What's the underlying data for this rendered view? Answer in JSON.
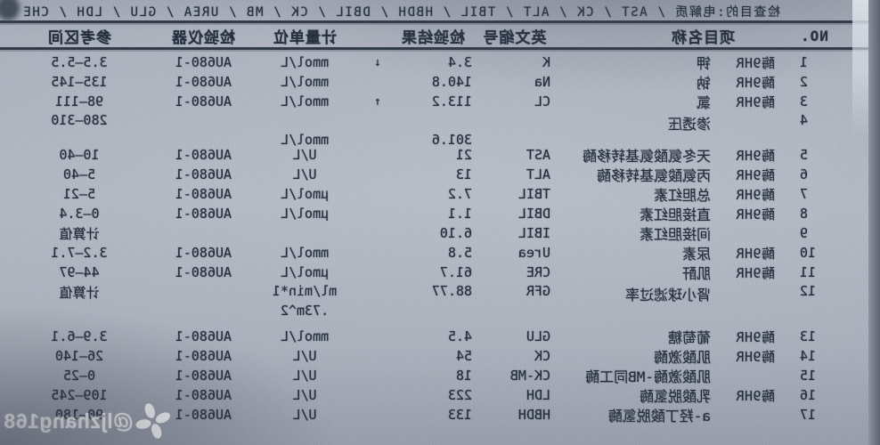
{
  "photo": {
    "orientation": "mirrored-horizontally"
  },
  "header_line": "检查目的:电解质 / AST / CK / ALT / TBIL / HBDH / DBIL / CK / MB / UREA / GLU / LDH / CHE",
  "table": {
    "columns": [
      "NO.",
      "项目名称",
      "英文缩号",
      "检验结果",
      "计量单位",
      "检验仪器",
      "参考区间"
    ],
    "rows": [
      {
        "no": "1",
        "prefix": "酶9HR",
        "name": "钾",
        "abbr": "K",
        "result": "3.4",
        "flag": "↓",
        "unit": "mmol/L",
        "instr": "AU680-1",
        "ref": "3.5—5.5"
      },
      {
        "no": "2",
        "prefix": "酶9HR",
        "name": "钠",
        "abbr": "Na",
        "result": "140.8",
        "flag": "",
        "unit": "mmol/L",
        "instr": "AU680-1",
        "ref": "135—145"
      },
      {
        "no": "3",
        "prefix": "酶9HR",
        "name": "氯",
        "abbr": "CL",
        "result": "113.2",
        "flag": "↑",
        "unit": "mmol/L",
        "instr": "AU680-1",
        "ref": "98—111"
      },
      {
        "no": "4",
        "prefix": "",
        "name": "渗透压",
        "abbr": "",
        "result": "",
        "flag": "",
        "unit": "",
        "instr": "",
        "ref": "280—310",
        "sub": {
          "result": "301.6",
          "unit": "mmol/L"
        }
      },
      {
        "no": "5",
        "prefix": "酶9HR",
        "name": "天冬氨酸氨基转移酶",
        "abbr": "AST",
        "result": "21",
        "flag": "",
        "unit": "U/L",
        "instr": "AU680-1",
        "ref": "10—40"
      },
      {
        "no": "6",
        "prefix": "酶9HR",
        "name": "丙氨酸氨基转移酶",
        "abbr": "ALT",
        "result": "13",
        "flag": "",
        "unit": "U/L",
        "instr": "AU680-1",
        "ref": "5—40"
      },
      {
        "no": "7",
        "prefix": "酶9HR",
        "name": "总胆红素",
        "abbr": "TBIL",
        "result": "7.2",
        "flag": "",
        "unit": "μmol/L",
        "instr": "AU680-1",
        "ref": "5—21"
      },
      {
        "no": "8",
        "prefix": "酶9HR",
        "name": "直接胆红素",
        "abbr": "DBIL",
        "result": "1.1",
        "flag": "",
        "unit": "μmol/L",
        "instr": "AU680-1",
        "ref": "0—3.4"
      },
      {
        "no": "9",
        "prefix": "",
        "name": "间接胆红素",
        "abbr": "IBIL",
        "result": "6.10",
        "flag": "",
        "unit": "",
        "instr": "",
        "ref": "计算值"
      },
      {
        "no": "10",
        "prefix": "酶9HR",
        "name": "尿素",
        "abbr": "Urea",
        "result": "5.8",
        "flag": "",
        "unit": "mmol/L",
        "instr": "AU680-1",
        "ref": "3.2—7.1"
      },
      {
        "no": "11",
        "prefix": "酶9HR",
        "name": "肌酐",
        "abbr": "CRE",
        "result": "61.7",
        "flag": "",
        "unit": "μmol/L",
        "instr": "AU680-1",
        "ref": "44—97"
      },
      {
        "no": "12",
        "prefix": "",
        "name": "肾小球滤过率",
        "abbr": "GFR",
        "result": "88.77",
        "flag": "",
        "unit": "ml/min*1",
        "instr": "",
        "ref": "计算值",
        "sub": {
          "result": "",
          "unit": ".73m^2"
        }
      },
      {
        "no": "13",
        "prefix": "酶9HR",
        "name": "葡萄糖",
        "abbr": "GLU",
        "result": "4.5",
        "flag": "",
        "unit": "mmol/L",
        "instr": "AU680-1",
        "ref": "3.9—6.1",
        "gap": true
      },
      {
        "no": "14",
        "prefix": "酶9HR",
        "name": "肌酸激酶",
        "abbr": "CK",
        "result": "54",
        "flag": "",
        "unit": "U/L",
        "instr": "AU680-1",
        "ref": "26—140"
      },
      {
        "no": "15",
        "prefix": "",
        "name": "肌酸激酶-MB同工酶",
        "abbr": "CK-MB",
        "result": "18",
        "flag": "",
        "unit": "U/L",
        "instr": "AU680-1",
        "ref": "0—25"
      },
      {
        "no": "16",
        "prefix": "酶9HR",
        "name": "乳酸脱氢酶",
        "abbr": "LDH",
        "result": "223",
        "flag": "",
        "unit": "U/L",
        "instr": "AU680-1",
        "ref": "109—245"
      },
      {
        "no": "17",
        "prefix": "",
        "name": "a-羟丁酸脱氢酶",
        "abbr": "HBDH",
        "result": "133",
        "flag": "",
        "unit": "U/L",
        "instr": "AU680-1",
        "ref": "90—180"
      }
    ]
  },
  "watermark": {
    "text": "@ljzhang168",
    "icon": "four-petal-flower-icon"
  },
  "colors": {
    "paper": "#aab0bc",
    "ink": "#222c3c",
    "rule": "#2e3846",
    "watermark": "#ffffff"
  }
}
